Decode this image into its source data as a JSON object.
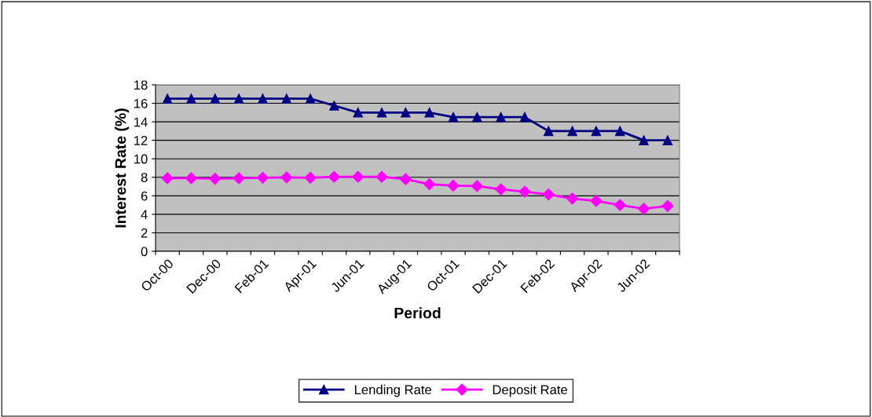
{
  "chart_data": {
    "type": "line",
    "xlabel": "Period",
    "ylabel": "Interest Rate (%)",
    "categories": [
      "Oct-00",
      null,
      "Dec-00",
      null,
      "Feb-01",
      null,
      "Apr-01",
      null,
      "Jun-01",
      null,
      "Aug-01",
      null,
      "Oct-01",
      null,
      "Dec-01",
      null,
      "Feb-02",
      null,
      "Apr-02",
      null,
      "Jun-02",
      null
    ],
    "series": [
      {
        "name": "Lending Rate",
        "color": "#000080",
        "marker": "triangle",
        "values": [
          16.5,
          16.5,
          16.5,
          16.5,
          16.5,
          16.5,
          16.5,
          15.75,
          15,
          15,
          15,
          15,
          14.5,
          14.5,
          14.5,
          14.5,
          13,
          13,
          13,
          13,
          12,
          12
        ]
      },
      {
        "name": "Deposit Rate",
        "color": "#ff00ff",
        "marker": "diamond",
        "values": [
          7.9,
          7.9,
          7.85,
          7.9,
          7.95,
          8,
          7.95,
          8.05,
          8.05,
          8.05,
          7.8,
          7.25,
          7.1,
          7.05,
          6.7,
          6.45,
          6.15,
          5.7,
          5.45,
          5.0,
          4.6,
          4.9
        ]
      }
    ],
    "ylim": [
      0,
      18
    ],
    "yticks": [
      0,
      2,
      4,
      6,
      8,
      10,
      12,
      14,
      16,
      18
    ],
    "grid": "y",
    "legend": "bottom",
    "line_style": "solid"
  }
}
